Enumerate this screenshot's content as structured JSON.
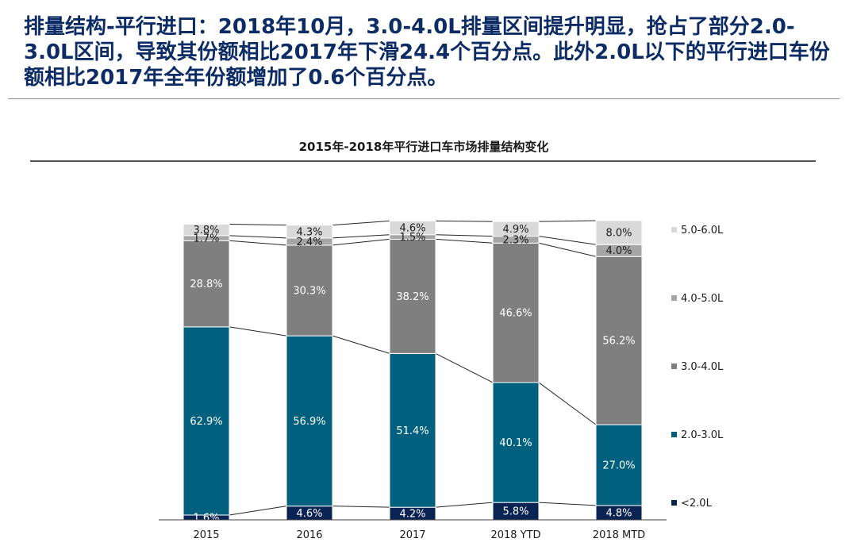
{
  "page": {
    "headline": "排量结构-平行进口：2018年10月，3.0-4.0L排量区间提升明显，抢占了部分2.0-3.0L区间，导致其份额相比2017年下滑24.4个百分点。此外2.0L以下的平行进口车份额相比2017年全年份额增加了0.6个百分点。"
  },
  "chart_data": {
    "type": "bar",
    "stacked": true,
    "percent": true,
    "title": "2015年-2018年平行进口车市场排量结构变化",
    "categories": [
      "2015",
      "2016",
      "2017",
      "2018 YTD",
      "2018 MTD"
    ],
    "series": [
      {
        "name": "<2.0L",
        "color": "#0b2352",
        "label_color": "#ffffff",
        "values": [
          1.6,
          4.6,
          4.2,
          5.8,
          4.8
        ]
      },
      {
        "name": "2.0-3.0L",
        "color": "#00607e",
        "label_color": "#ffffff",
        "values": [
          62.9,
          56.9,
          51.4,
          40.1,
          27.0
        ]
      },
      {
        "name": "3.0-4.0L",
        "color": "#7f7f7f",
        "label_color": "#ffffff",
        "values": [
          28.8,
          30.3,
          38.2,
          46.6,
          56.2
        ]
      },
      {
        "name": "4.0-5.0L",
        "color": "#a6a6a6",
        "label_color": "#1a1a1a",
        "values": [
          1.7,
          2.4,
          1.5,
          2.3,
          4.0
        ]
      },
      {
        "name": "5.0-6.0L",
        "color": "#d9d9d9",
        "label_color": "#1a1a1a",
        "values": [
          3.8,
          4.3,
          4.6,
          4.9,
          8.0
        ]
      }
    ],
    "value_format": "{v}%",
    "xlabel": "",
    "ylabel": "",
    "ylim": [
      0,
      100
    ],
    "grid": false,
    "legend": "right",
    "connector_lines": true
  }
}
